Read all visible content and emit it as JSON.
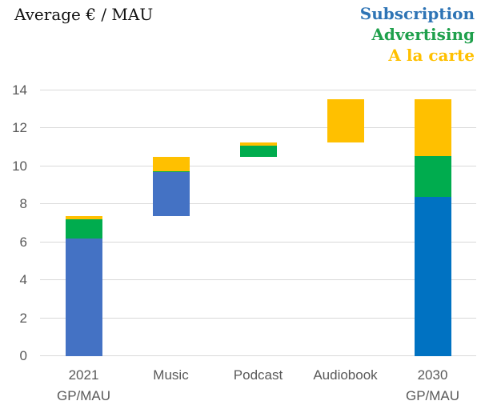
{
  "chart_data": {
    "type": "bar",
    "subtype": "waterfall-stacked",
    "title": "Average € / MAU",
    "xlabel": "",
    "ylabel": "",
    "ylim": [
      0,
      14
    ],
    "yticks": [
      0,
      2,
      4,
      6,
      8,
      10,
      12,
      14
    ],
    "grid": "horizontal",
    "legend_position": "top-right",
    "legend": [
      {
        "label": "Subscription",
        "color": "#2E74B5"
      },
      {
        "label": "Advertising",
        "color": "#1FA04C"
      },
      {
        "label": "A la carte",
        "color": "#FFC000"
      }
    ],
    "colors": {
      "subscription_2021": "#4472C4",
      "subscription_2030": "#0072C2",
      "advertising": "#00AC4E",
      "a_la_carte": "#FFC000",
      "gridline": "#D9D9D9",
      "axis_text": "#595959"
    },
    "categories": [
      {
        "label": [
          "2021",
          "GP/MAU"
        ],
        "total": 7.4,
        "segments": [
          {
            "series": "Subscription",
            "from": 0,
            "to": 6.2,
            "value": 6.2,
            "color": "#4472C4"
          },
          {
            "series": "Advertising",
            "from": 6.2,
            "to": 7.2,
            "value": 1.0,
            "color": "#00AC4E"
          },
          {
            "series": "A la carte",
            "from": 7.2,
            "to": 7.4,
            "value": 0.2,
            "color": "#FFC000"
          }
        ]
      },
      {
        "label": [
          "Music"
        ],
        "total": 3.1,
        "segments": [
          {
            "series": "Subscription",
            "from": 7.4,
            "to": 9.7,
            "value": 2.3,
            "color": "#4472C4"
          },
          {
            "series": "Advertising",
            "from": 9.7,
            "to": 9.75,
            "value": 0.05,
            "color": "#00AC4E"
          },
          {
            "series": "A la carte",
            "from": 9.75,
            "to": 10.5,
            "value": 0.75,
            "color": "#FFC000"
          }
        ]
      },
      {
        "label": [
          "Podcast"
        ],
        "total": 0.75,
        "segments": [
          {
            "series": "Advertising",
            "from": 10.5,
            "to": 11.1,
            "value": 0.6,
            "color": "#00AC4E"
          },
          {
            "series": "A la carte",
            "from": 11.1,
            "to": 11.25,
            "value": 0.15,
            "color": "#FFC000"
          }
        ]
      },
      {
        "label": [
          "Audiobook"
        ],
        "total": 2.3,
        "segments": [
          {
            "series": "A la carte",
            "from": 11.25,
            "to": 13.55,
            "value": 2.3,
            "color": "#FFC000"
          }
        ]
      },
      {
        "label": [
          "2030",
          "GP/MAU"
        ],
        "total": 13.55,
        "segments": [
          {
            "series": "Subscription",
            "from": 0,
            "to": 8.4,
            "value": 8.4,
            "color": "#0072C2"
          },
          {
            "series": "Advertising",
            "from": 8.4,
            "to": 10.55,
            "value": 2.15,
            "color": "#00AC4E"
          },
          {
            "series": "A la carte",
            "from": 10.55,
            "to": 13.55,
            "value": 3.0,
            "color": "#FFC000"
          }
        ]
      }
    ]
  }
}
